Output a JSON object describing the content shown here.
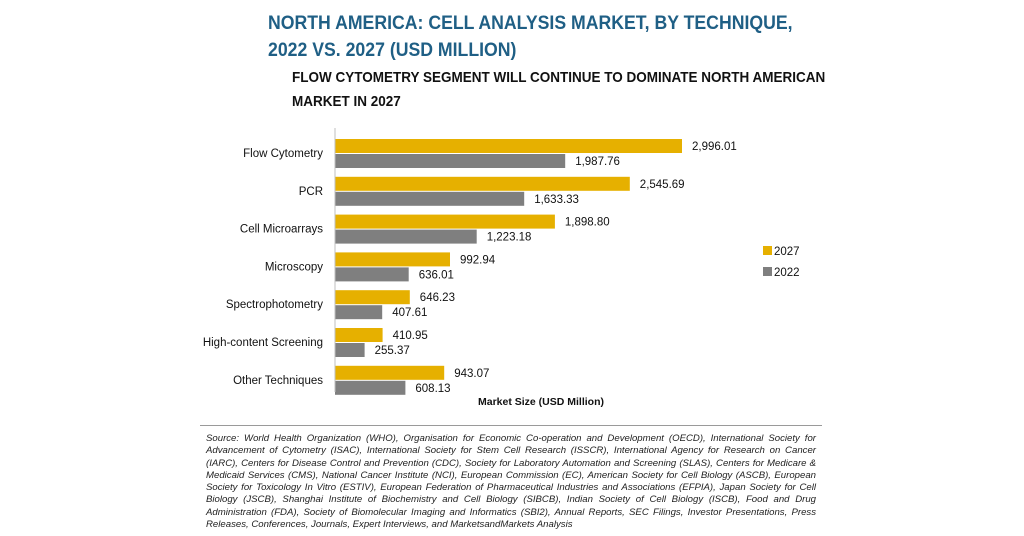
{
  "title_line1": "NORTH AMERICA: CELL ANALYSIS MARKET, BY TECHNIQUE,",
  "title_line2": "2022 VS. 2027 (USD MILLION)",
  "subtitle_line1": "FLOW CYTOMETRY SEGMENT WILL CONTINUE TO DOMINATE NORTH AMERICAN",
  "subtitle_line2": "MARKET IN 2027",
  "source": "Source: World Health Organization (WHO), Organisation for Economic Co-operation and Development (OECD), International Society for Advancement of Cytometry (ISAC), International Society for Stem Cell Research (ISSCR), International Agency for Research on Cancer (IARC), Centers for Disease Control and Prevention (CDC), Society for Laboratory Automation and Screening (SLAS), Centers for Medicare & Medicaid Services (CMS), National Cancer Institute (NCI), European Commission (EC), American Society for Cell Biology (ASCB), European Society for Toxicology In Vitro (ESTIV), European Federation of Pharmaceutical Industries and Associations (EFPIA), Japan Society for Cell Biology (JSCB), Shanghai Institute of Biochemistry and Cell Biology (SIBCB), Indian Society of Cell Biology (ISCB), Food and Drug Administration (FDA), Society of Biomolecular Imaging and Informatics (SBI2), Annual Reports, SEC Filings, Investor Presentations, Press Releases, Conferences, Journals, Expert Interviews, and MarketsandMarkets Analysis",
  "chart_data": {
    "type": "bar",
    "orientation": "horizontal",
    "title": "NORTH AMERICA: CELL ANALYSIS MARKET, BY TECHNIQUE, 2022 VS. 2027 (USD MILLION)",
    "subtitle": "FLOW CYTOMETRY SEGMENT WILL CONTINUE TO DOMINATE NORTH AMERICAN MARKET IN 2027",
    "categories": [
      "Flow Cytometry",
      "PCR",
      "Cell Microarrays",
      "Microscopy",
      "Spectrophotometry",
      "High-content Screening",
      "Other Techniques"
    ],
    "series": [
      {
        "name": "2027",
        "color": "#e6b000",
        "values": [
          2996.01,
          2545.69,
          1898.8,
          992.94,
          646.23,
          410.95,
          943.07
        ],
        "labels": [
          "2,996.01",
          "2,545.69",
          "1,898.80",
          "992.94",
          "646.23",
          "410.95",
          "943.07"
        ]
      },
      {
        "name": "2022",
        "color": "#7f7f7f",
        "values": [
          1987.76,
          1633.33,
          1223.18,
          636.01,
          407.61,
          255.37,
          608.13
        ],
        "labels": [
          "1,987.76",
          "1,633.33",
          "1,223.18",
          "636.01",
          "407.61",
          "255.37",
          "608.13"
        ]
      }
    ],
    "xlabel": "Market Size (USD Million)",
    "ylabel": "",
    "xlim": [
      0,
      3000
    ],
    "grid": false,
    "legend_position": "right",
    "legend_order": [
      "2027",
      "2022"
    ]
  }
}
